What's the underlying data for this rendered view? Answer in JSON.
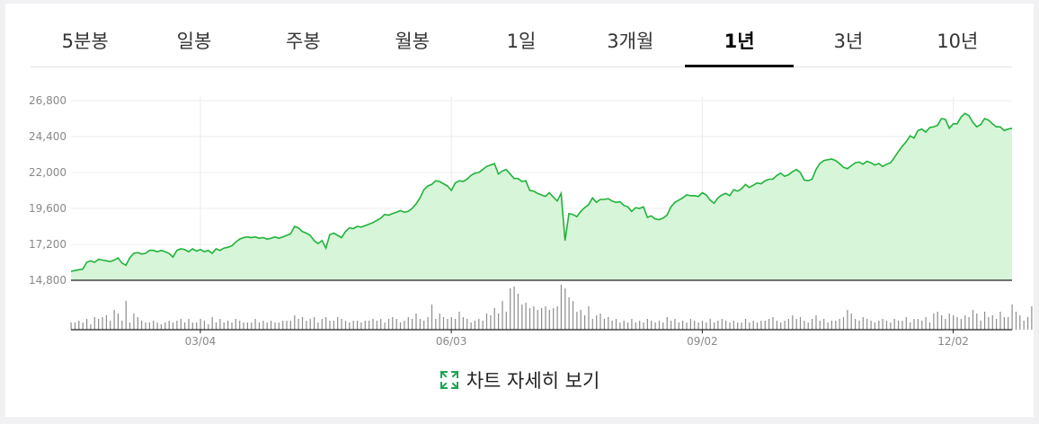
{
  "tabs": [
    {
      "label": "5분봉",
      "active": false
    },
    {
      "label": "일봉",
      "active": false
    },
    {
      "label": "주봉",
      "active": false
    },
    {
      "label": "월봉",
      "active": false
    },
    {
      "label": "1일",
      "active": false
    },
    {
      "label": "3개월",
      "active": false
    },
    {
      "label": "1년",
      "active": true
    },
    {
      "label": "3년",
      "active": false
    },
    {
      "label": "10년",
      "active": false
    }
  ],
  "detail_link_label": "차트 자세히 보기",
  "colors": {
    "line": "#20b33a",
    "fill": "#d7f5d9",
    "volume": "#8c8c8c",
    "grid": "#ececec",
    "axis": "#222222",
    "tick_text": "#888888"
  },
  "icons": {
    "detail": "expand-icon"
  },
  "chart_data": {
    "type": "area",
    "y_ticks": [
      14800,
      17200,
      19600,
      22000,
      24400,
      26800
    ],
    "ylim": [
      14800,
      26800
    ],
    "x_ticks": [
      {
        "label": "03/04",
        "index": 33
      },
      {
        "label": "06/03",
        "index": 97
      },
      {
        "label": "09/02",
        "index": 161
      },
      {
        "label": "12/02",
        "index": 225
      }
    ],
    "grid": true,
    "price": [
      15400,
      15450,
      15500,
      15550,
      16000,
      16100,
      16000,
      16200,
      16150,
      16100,
      16050,
      16150,
      16300,
      15950,
      15800,
      16300,
      16600,
      16650,
      16550,
      16600,
      16800,
      16800,
      16700,
      16800,
      16700,
      16600,
      16350,
      16800,
      16900,
      16850,
      16700,
      16900,
      16750,
      16850,
      16700,
      16800,
      16600,
      16900,
      16800,
      16950,
      17000,
      17100,
      17350,
      17550,
      17650,
      17700,
      17650,
      17700,
      17600,
      17650,
      17550,
      17600,
      17700,
      17600,
      17700,
      17800,
      17900,
      18400,
      18300,
      18050,
      17950,
      17800,
      17450,
      17250,
      17450,
      16950,
      17850,
      17950,
      17800,
      17650,
      18050,
      18300,
      18250,
      18400,
      18350,
      18450,
      18550,
      18650,
      18800,
      18950,
      19200,
      19150,
      19250,
      19350,
      19450,
      19350,
      19400,
      19600,
      19900,
      20300,
      20850,
      21100,
      21200,
      21450,
      21400,
      21250,
      21100,
      20800,
      21300,
      21450,
      21400,
      21550,
      21800,
      21950,
      22000,
      22200,
      22400,
      22500,
      22600,
      21900,
      22100,
      22200,
      21900,
      21600,
      21600,
      21400,
      21450,
      20800,
      20750,
      20600,
      20500,
      20400,
      20650,
      20350,
      20100,
      20600,
      17450,
      19250,
      19200,
      19050,
      19400,
      19650,
      19850,
      20300,
      20000,
      20200,
      20200,
      20250,
      20100,
      20000,
      20050,
      19800,
      19700,
      19400,
      19650,
      19600,
      19700,
      19000,
      19100,
      18900,
      18850,
      18950,
      19150,
      19700,
      20000,
      20150,
      20300,
      20500,
      20450,
      20450,
      20400,
      20650,
      20500,
      20150,
      19950,
      20300,
      20500,
      20600,
      20450,
      20850,
      20750,
      20900,
      21200,
      21000,
      21150,
      21300,
      21250,
      21450,
      21550,
      21550,
      21800,
      21950,
      21750,
      21850,
      22050,
      22200,
      22000,
      21500,
      21450,
      21550,
      22200,
      22600,
      22800,
      22850,
      22900,
      22800,
      22600,
      22350,
      22250,
      22450,
      22650,
      22700,
      22550,
      22750,
      22650,
      22500,
      22600,
      22400,
      22550,
      22650,
      23000,
      23400,
      23750,
      24050,
      24450,
      24300,
      24800,
      24900,
      24700,
      25000,
      25050,
      25150,
      25600,
      25550,
      24950,
      25250,
      25250,
      25700,
      25950,
      25800,
      25350,
      25050,
      25200,
      25600,
      25500,
      25250,
      25050,
      25050,
      24800,
      24900,
      24950
    ],
    "volume": [
      8,
      8,
      10,
      8,
      12,
      6,
      14,
      12,
      14,
      16,
      10,
      22,
      18,
      10,
      32,
      8,
      18,
      14,
      10,
      8,
      8,
      10,
      8,
      6,
      8,
      10,
      8,
      10,
      12,
      8,
      12,
      8,
      8,
      12,
      10,
      6,
      14,
      8,
      12,
      8,
      10,
      8,
      12,
      10,
      8,
      8,
      8,
      12,
      8,
      10,
      8,
      10,
      8,
      8,
      10,
      10,
      10,
      16,
      12,
      14,
      10,
      12,
      14,
      8,
      12,
      14,
      10,
      10,
      14,
      12,
      10,
      8,
      10,
      10,
      8,
      10,
      10,
      12,
      10,
      12,
      8,
      12,
      14,
      12,
      8,
      10,
      14,
      12,
      18,
      12,
      10,
      14,
      28,
      12,
      18,
      14,
      12,
      14,
      12,
      20,
      14,
      12,
      8,
      10,
      12,
      10,
      18,
      16,
      24,
      18,
      32,
      20,
      46,
      48,
      40,
      28,
      30,
      24,
      26,
      22,
      24,
      26,
      22,
      24,
      26,
      50,
      46,
      36,
      32,
      20,
      22,
      16,
      26,
      12,
      16,
      18,
      12,
      14,
      10,
      12,
      8,
      10,
      8,
      12,
      8,
      10,
      8,
      12,
      10,
      8,
      10,
      8,
      14,
      10,
      12,
      8,
      10,
      8,
      12,
      10,
      8,
      10,
      8,
      12,
      8,
      10,
      12,
      10,
      8,
      10,
      8,
      8,
      12,
      8,
      10,
      8,
      10,
      10,
      12,
      14,
      10,
      8,
      10,
      12,
      16,
      12,
      14,
      10,
      8,
      12,
      16,
      10,
      12,
      8,
      10,
      10,
      12,
      14,
      22,
      18,
      12,
      10,
      14,
      12,
      10,
      8,
      10,
      12,
      10,
      8,
      12,
      10,
      10,
      14,
      8,
      12,
      12,
      10,
      14,
      8,
      18,
      20,
      16,
      12,
      18,
      16,
      14,
      12,
      16,
      14,
      22,
      18,
      10,
      20,
      14,
      16,
      12,
      20,
      14,
      14,
      28,
      20,
      16,
      10,
      14,
      26,
      14,
      18,
      22,
      12,
      36
    ]
  }
}
